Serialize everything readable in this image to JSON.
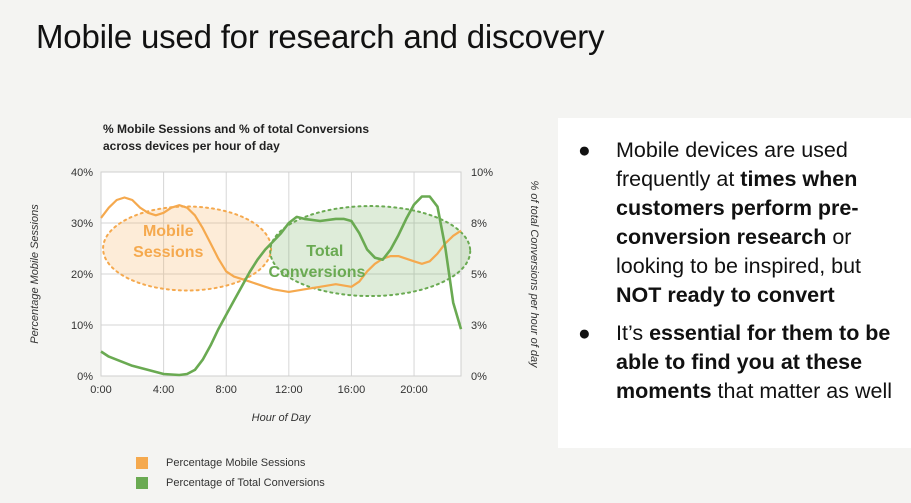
{
  "slide": {
    "title": "Mobile used for research and discovery"
  },
  "bullets": [
    {
      "marker": "●",
      "parts": [
        {
          "text": "Mobile devices are used frequently at ",
          "bold": false
        },
        {
          "text": "times when customers perform pre-conversion research",
          "bold": true
        },
        {
          "text": " or looking to be inspired, but ",
          "bold": false
        },
        {
          "text": "NOT ready to convert",
          "bold": true
        }
      ]
    },
    {
      "marker": "●",
      "parts": [
        {
          "text": "It’s ",
          "bold": false
        },
        {
          "text": "essential for them to be able to find you at these moments",
          "bold": true
        },
        {
          "text": " that matter as well",
          "bold": false
        }
      ]
    }
  ],
  "chart_data": {
    "type": "line",
    "title": "% Mobile Sessions and % of total Conversions across devices per hour of day",
    "xlabel": "Hour of Day",
    "ylabel": "Percentage Mobile Sessions",
    "y2label": "% of total Conversions per hour of day",
    "xlim": [
      0,
      23
    ],
    "x_ticks": [
      "0:00",
      "4:00",
      "8:00",
      "12:00",
      "16:00",
      "20:00"
    ],
    "ylim": [
      0,
      40
    ],
    "y_ticks": [
      "0%",
      "10%",
      "20%",
      "30%",
      "40%"
    ],
    "y2lim": [
      0,
      10
    ],
    "y2_ticks": [
      "0%",
      "3%",
      "5%",
      "8%",
      "10%"
    ],
    "grid": true,
    "legend_position": "bottom",
    "series": [
      {
        "name": "Percentage Mobile Sessions",
        "axis": "left",
        "color": "#f5a94e",
        "x": [
          0,
          0.5,
          1,
          1.5,
          2,
          2.5,
          3,
          3.5,
          4,
          4.5,
          5,
          5.5,
          6,
          6.5,
          7,
          7.5,
          8,
          8.5,
          9,
          9.5,
          10,
          10.5,
          11,
          12,
          13,
          14,
          15,
          16,
          16.5,
          17,
          17.5,
          18,
          18.5,
          19,
          19.5,
          20,
          20.5,
          21,
          21.5,
          22,
          22.5,
          23
        ],
        "values": [
          31,
          33,
          34.5,
          35,
          34.5,
          33,
          32,
          31.5,
          32,
          33,
          33.5,
          33,
          31.5,
          29,
          26,
          23,
          20.5,
          19.5,
          19,
          18.5,
          18,
          17.5,
          17,
          16.5,
          17,
          17.5,
          18,
          17.5,
          18.5,
          20.5,
          22,
          23,
          23.5,
          23.5,
          23,
          22.5,
          22,
          22.5,
          24,
          26,
          27.5,
          28.5
        ]
      },
      {
        "name": "Percentage of Total Conversions",
        "axis": "right",
        "color": "#6aaa52",
        "x": [
          0,
          0.5,
          1,
          2,
          3,
          4,
          5,
          5.5,
          6,
          6.5,
          7,
          7.5,
          8,
          8.5,
          9,
          9.5,
          10,
          10.5,
          11,
          11.5,
          12,
          12.5,
          13,
          14,
          15,
          15.5,
          16,
          16.5,
          17,
          17.5,
          18,
          18.5,
          19,
          19.5,
          20,
          20.5,
          21,
          21.5,
          22,
          22.5,
          23
        ],
        "values": [
          1.2,
          0.95,
          0.8,
          0.5,
          0.3,
          0.1,
          0.05,
          0.1,
          0.3,
          0.8,
          1.5,
          2.3,
          3.0,
          3.7,
          4.4,
          5.1,
          5.7,
          6.2,
          6.6,
          7.0,
          7.5,
          7.8,
          7.7,
          7.6,
          7.7,
          7.7,
          7.6,
          7.0,
          6.2,
          5.8,
          5.7,
          6.2,
          6.9,
          7.7,
          8.4,
          8.8,
          8.8,
          8.3,
          6.3,
          3.6,
          2.3
        ]
      }
    ],
    "annotations": [
      {
        "text": "Mobile Sessions",
        "color": "#f5a94e"
      },
      {
        "text": "Total Conversions",
        "color": "#6aaa52"
      }
    ]
  }
}
